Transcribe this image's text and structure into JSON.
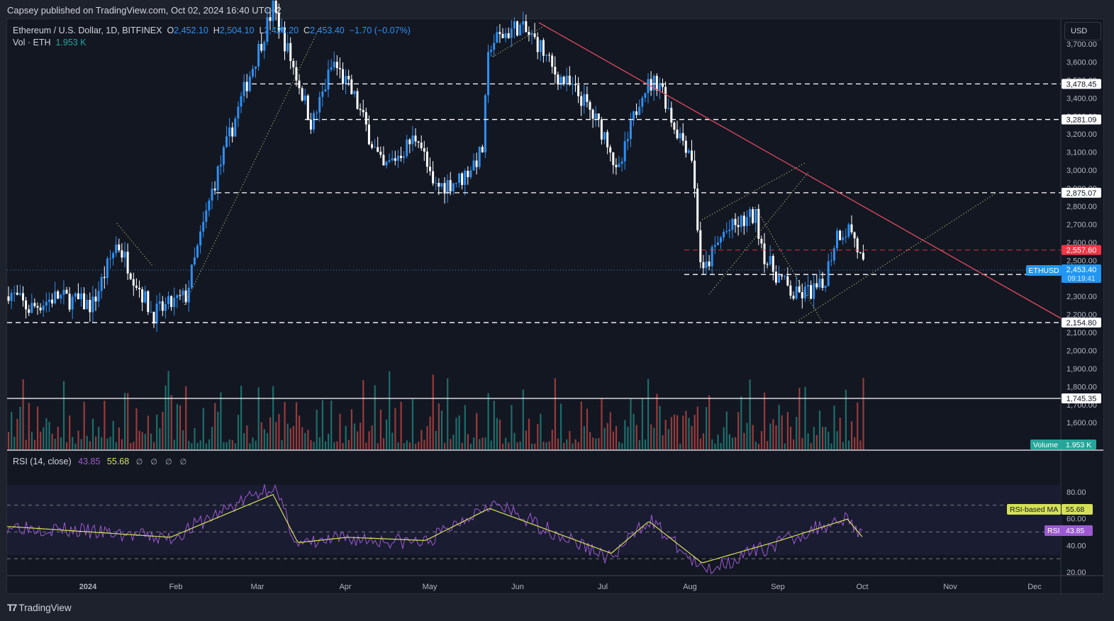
{
  "publisher_line": "Capsey published on TradingView.com, Oct 02, 2024 16:40 UTC+2",
  "legend": {
    "symbol": "Ethereum / U.S. Dollar, 1D, BITFINEX",
    "o_label": "O",
    "o": "2,452.10",
    "h_label": "H",
    "h": "2,504.10",
    "l_label": "L",
    "l": "2,425.20",
    "c_label": "C",
    "c": "2,453.40",
    "change": "−1.70 (−0.07%)",
    "vol_label": "Vol · ETH",
    "vol": "1.953 K"
  },
  "rsi_legend": {
    "title": "RSI (14, close)",
    "rsi": "43.85",
    "ma": "55.68",
    "na": "∅ ∅ ∅ ∅"
  },
  "currency_button": "USD",
  "footer_logo": "TradingView",
  "colors": {
    "up": "#2f8ff0",
    "down": "#ffffff",
    "vol_up": "#26a69a",
    "vol_down": "#ef5350",
    "trendline": "#e04a5f",
    "rsi": "#9c59d1",
    "rsi_ma": "#d4e157",
    "current_price": "#2196f3",
    "resistance_red": "#f23645"
  },
  "chart_data": [
    {
      "type": "candlestick",
      "title": "Ethereum / U.S. Dollar, 1D, BITFINEX",
      "xlabel": "",
      "ylabel": "USD",
      "x_ticks": [
        "2024",
        "Feb",
        "Mar",
        "Apr",
        "May",
        "Jun",
        "Jul",
        "Aug",
        "Sep",
        "Oct",
        "Nov",
        "Dec"
      ],
      "y_ticks": [
        "3,700.00",
        "3,600.00",
        "3,400.00",
        "3,200.00",
        "3,100.00",
        "3,000.00",
        "2,800.00",
        "2,700.00",
        "2,600.00",
        "2,500.00",
        "2,300.00",
        "2,200.00",
        "2,100.00",
        "2,000.00",
        "1,900.00",
        "1,800.00",
        "1,700.00",
        "1,600.00"
      ],
      "ylim": [
        1500,
        3750
      ],
      "last": {
        "open": 2452.1,
        "high": 2504.1,
        "low": 2425.2,
        "close": 2453.4,
        "change": -1.7,
        "change_pct": -0.07,
        "countdown": "09:19:41",
        "symbol": "ETHUSD"
      },
      "horizontal_levels": [
        {
          "value": "3,478.45",
          "style": "dashed-white"
        },
        {
          "value": "3,281.09",
          "style": "dashed-white"
        },
        {
          "value": "2,875.07",
          "style": "dashed-white"
        },
        {
          "value": "2,557.60",
          "style": "dashed-red"
        },
        {
          "value": "2,421.71",
          "style": "dashed-white"
        },
        {
          "value": "2,154.80",
          "style": "dashed-white"
        },
        {
          "value": "1,745.35",
          "style": "solid-white"
        }
      ],
      "current_price_label": {
        "symbol": "ETHUSD",
        "price": "2,453.40",
        "countdown": "09:19:41"
      },
      "approx_monthly_closes": [
        {
          "month": "Jan 2024",
          "close": 2280
        },
        {
          "month": "Feb",
          "close": 3380
        },
        {
          "month": "Mar",
          "close": 3640
        },
        {
          "month": "Apr",
          "close": 3010
        },
        {
          "month": "May",
          "close": 3760
        },
        {
          "month": "Jun",
          "close": 3440
        },
        {
          "month": "Jul",
          "close": 3230
        },
        {
          "month": "Aug",
          "close": 2520
        },
        {
          "month": "Sep",
          "close": 2600
        },
        {
          "month": "Oct 2",
          "close": 2453
        }
      ],
      "legend": [
        "Ethereum / U.S. Dollar",
        "Vol · ETH"
      ],
      "grid": false
    },
    {
      "type": "bar",
      "title": "Volume",
      "last_value": "1.953 K",
      "label": "Volume"
    },
    {
      "type": "line",
      "title": "RSI (14, close)",
      "series": [
        {
          "name": "RSI",
          "last": 43.85
        },
        {
          "name": "RSI-based MA",
          "last": 55.68
        }
      ],
      "y_ticks": [
        "80.00",
        "60.00",
        "40.00",
        "20.00"
      ],
      "bands": [
        70,
        50,
        30
      ],
      "ylim": [
        15,
        90
      ],
      "approx_rsi_points": [
        {
          "x": "Jan",
          "rsi": 55
        },
        {
          "x": "Feb",
          "rsi": 45
        },
        {
          "x": "Mar",
          "rsi": 85
        },
        {
          "x": "Mar end",
          "rsi": 40
        },
        {
          "x": "Apr",
          "rsi": 45
        },
        {
          "x": "May",
          "rsi": 42
        },
        {
          "x": "late May",
          "rsi": 72
        },
        {
          "x": "Jun",
          "rsi": 55
        },
        {
          "x": "Jul",
          "rsi": 30
        },
        {
          "x": "late Jul",
          "rsi": 60
        },
        {
          "x": "Aug 5",
          "rsi": 21
        },
        {
          "x": "Sep",
          "rsi": 42
        },
        {
          "x": "late Sep",
          "rsi": 62
        },
        {
          "x": "Oct 2",
          "rsi": 43.85
        }
      ]
    }
  ]
}
